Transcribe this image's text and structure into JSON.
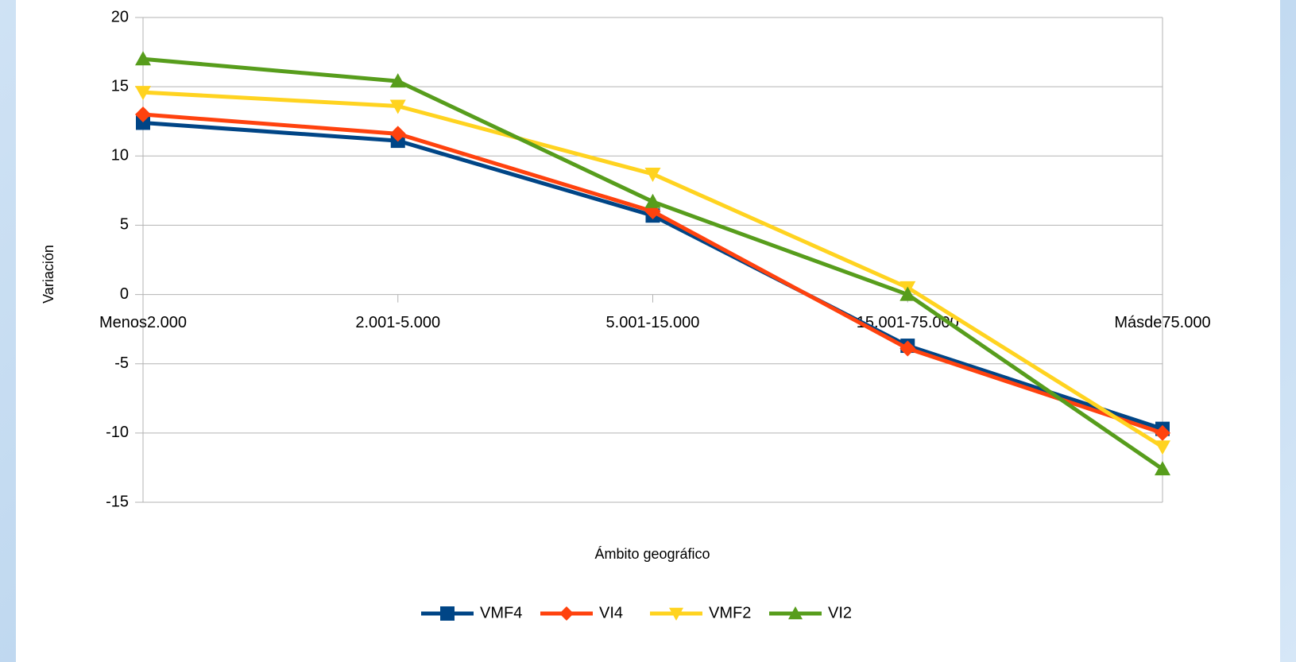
{
  "chart_data": {
    "type": "line",
    "x_label": "Ámbito geográfico",
    "y_label": "Variación",
    "categories": [
      "Menos2.000",
      "2.001-5.000",
      "5.001-15.000",
      "15.001-75.000",
      "Másde75.000"
    ],
    "series": [
      {
        "name": "VMF4",
        "color": "#004586",
        "marker": "square",
        "values": [
          12.4,
          11.1,
          5.7,
          -3.7,
          -9.7
        ]
      },
      {
        "name": "VI4",
        "color": "#ff420e",
        "marker": "diamond",
        "values": [
          13.0,
          11.6,
          6.0,
          -3.9,
          -10.0
        ]
      },
      {
        "name": "VMF2",
        "color": "#ffd320",
        "marker": "triangle-down",
        "values": [
          14.6,
          13.6,
          8.7,
          0.5,
          -11.0
        ]
      },
      {
        "name": "VI2",
        "color": "#579d1c",
        "marker": "triangle-up",
        "values": [
          17.0,
          15.4,
          6.7,
          0.0,
          -12.6
        ]
      }
    ],
    "ylim": [
      -15,
      20
    ],
    "yticks": [
      -15,
      -10,
      -5,
      0,
      5,
      10,
      15,
      20
    ],
    "grid": true,
    "legend": "bottom"
  }
}
